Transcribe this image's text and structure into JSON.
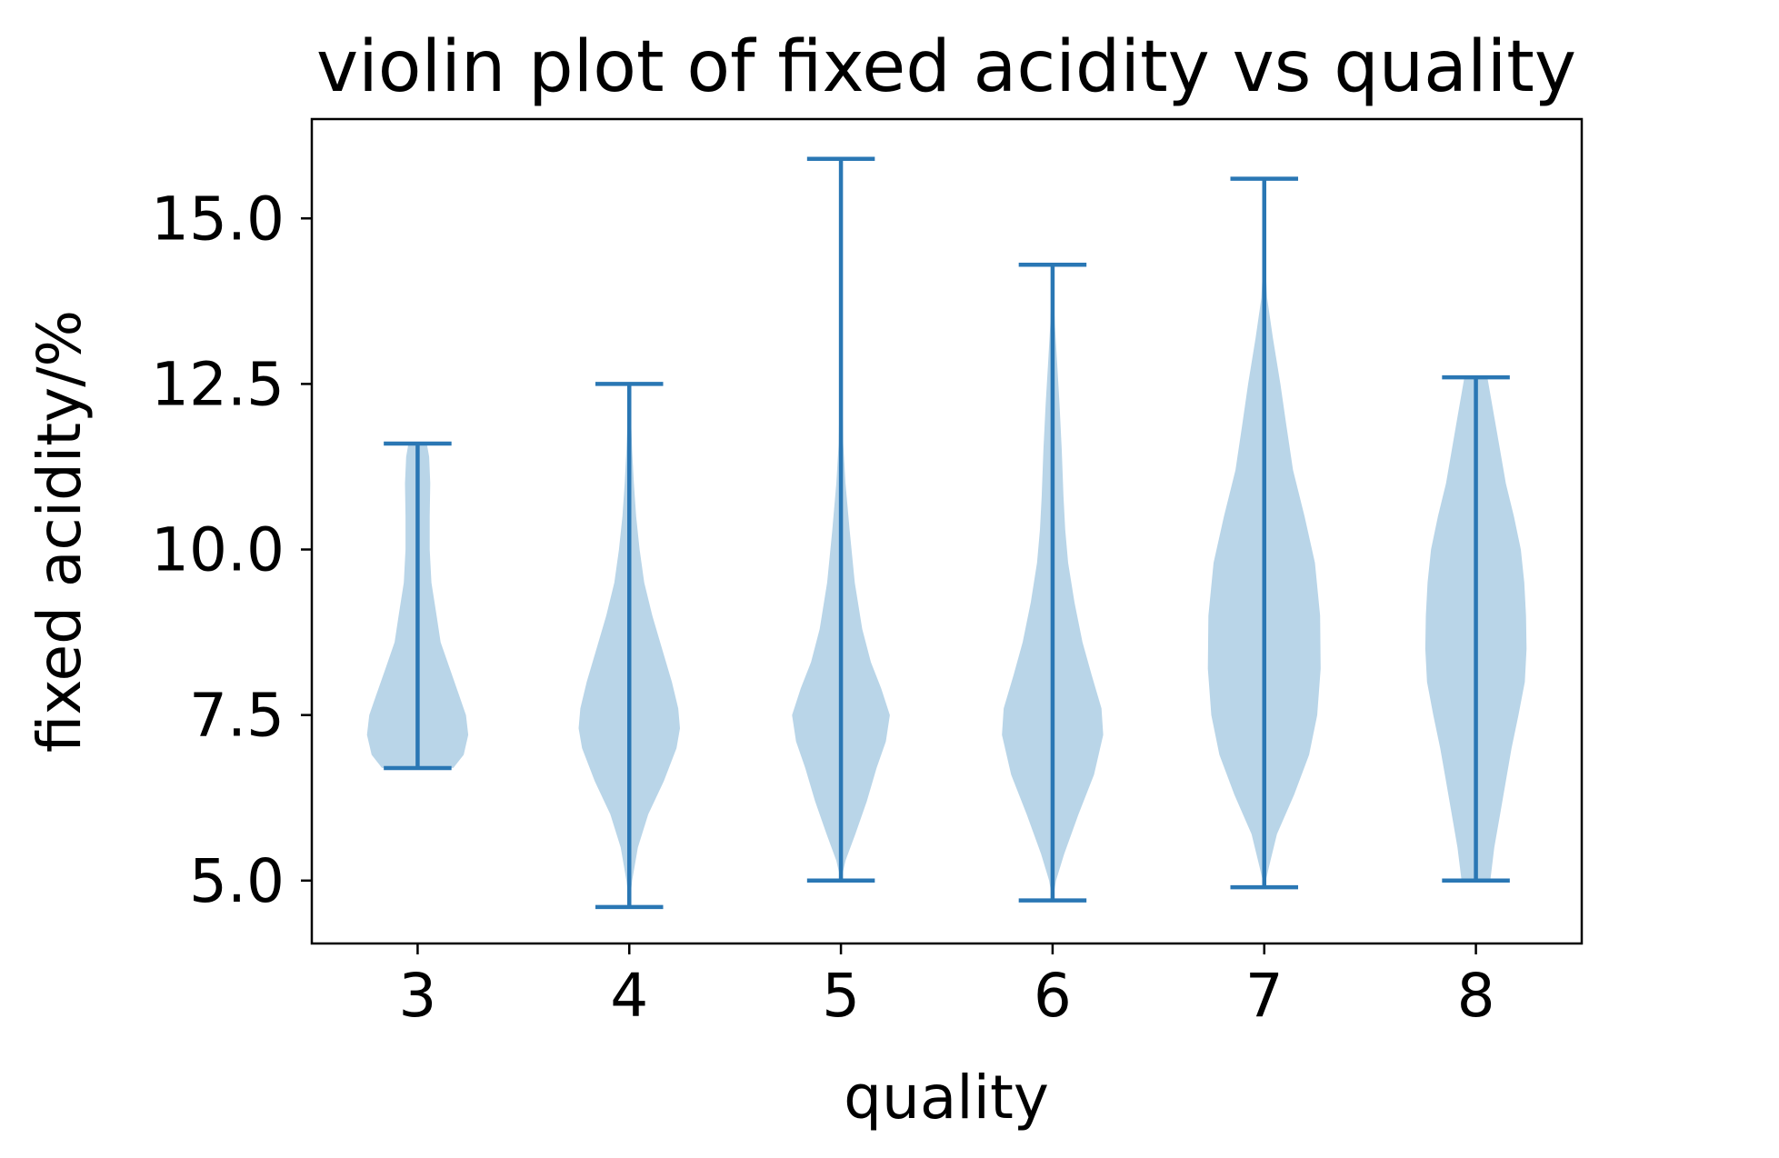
{
  "chart_data": {
    "type": "violin",
    "title": "violin plot of fixed acidity vs quality",
    "xlabel": "quality",
    "ylabel": "fixed acidity/%",
    "categories": [
      "3",
      "4",
      "5",
      "6",
      "7",
      "8"
    ],
    "x_tick_labels": [
      "3",
      "4",
      "5",
      "6",
      "7",
      "8"
    ],
    "y_ticks": [
      5.0,
      7.5,
      10.0,
      12.5,
      15.0
    ],
    "y_tick_labels": [
      "5.0",
      "7.5",
      "10.0",
      "12.5",
      "15.0"
    ],
    "ylim": [
      4.05,
      16.5
    ],
    "grid": false,
    "legend": "none",
    "colors": {
      "line": "#2a77b4",
      "body": "#b9d5e8"
    },
    "series": [
      {
        "category": "3",
        "min": 6.7,
        "max": 11.6,
        "density": [
          [
            6.7,
            0.62
          ],
          [
            6.9,
            0.8
          ],
          [
            7.2,
            0.88
          ],
          [
            7.5,
            0.84
          ],
          [
            7.8,
            0.72
          ],
          [
            8.2,
            0.56
          ],
          [
            8.6,
            0.4
          ],
          [
            9.0,
            0.33
          ],
          [
            9.5,
            0.24
          ],
          [
            10.0,
            0.21
          ],
          [
            10.5,
            0.21
          ],
          [
            11.0,
            0.22
          ],
          [
            11.4,
            0.2
          ],
          [
            11.6,
            0.16
          ]
        ]
      },
      {
        "category": "4",
        "min": 4.6,
        "max": 12.5,
        "density": [
          [
            4.6,
            0.0
          ],
          [
            5.0,
            0.05
          ],
          [
            5.5,
            0.15
          ],
          [
            6.0,
            0.33
          ],
          [
            6.5,
            0.6
          ],
          [
            7.0,
            0.82
          ],
          [
            7.3,
            0.88
          ],
          [
            7.6,
            0.85
          ],
          [
            8.0,
            0.74
          ],
          [
            8.5,
            0.57
          ],
          [
            9.0,
            0.4
          ],
          [
            9.5,
            0.26
          ],
          [
            10.0,
            0.18
          ],
          [
            10.5,
            0.12
          ],
          [
            11.0,
            0.08
          ],
          [
            11.5,
            0.05
          ],
          [
            12.0,
            0.03
          ],
          [
            12.5,
            0.0
          ]
        ]
      },
      {
        "category": "5",
        "min": 5.0,
        "max": 15.9,
        "density": [
          [
            5.0,
            0.0
          ],
          [
            5.3,
            0.08
          ],
          [
            5.7,
            0.25
          ],
          [
            6.2,
            0.45
          ],
          [
            6.7,
            0.62
          ],
          [
            7.1,
            0.78
          ],
          [
            7.5,
            0.85
          ],
          [
            7.9,
            0.7
          ],
          [
            8.3,
            0.52
          ],
          [
            8.8,
            0.37
          ],
          [
            9.5,
            0.24
          ],
          [
            10.3,
            0.15
          ],
          [
            11.0,
            0.08
          ],
          [
            11.6,
            0.04
          ],
          [
            12.5,
            0.02
          ],
          [
            13.5,
            0.01
          ],
          [
            14.5,
            0.005
          ],
          [
            15.9,
            0.0
          ]
        ]
      },
      {
        "category": "6",
        "min": 4.7,
        "max": 14.3,
        "density": [
          [
            4.7,
            0.0
          ],
          [
            5.0,
            0.06
          ],
          [
            5.4,
            0.2
          ],
          [
            6.0,
            0.45
          ],
          [
            6.6,
            0.72
          ],
          [
            7.2,
            0.88
          ],
          [
            7.6,
            0.85
          ],
          [
            8.1,
            0.68
          ],
          [
            8.6,
            0.52
          ],
          [
            9.2,
            0.38
          ],
          [
            9.8,
            0.27
          ],
          [
            10.3,
            0.22
          ],
          [
            10.8,
            0.19
          ],
          [
            11.5,
            0.16
          ],
          [
            12.2,
            0.12
          ],
          [
            12.8,
            0.08
          ],
          [
            13.4,
            0.04
          ],
          [
            14.3,
            0.0
          ]
        ]
      },
      {
        "category": "7",
        "min": 4.9,
        "max": 15.6,
        "density": [
          [
            4.9,
            0.0
          ],
          [
            5.2,
            0.08
          ],
          [
            5.7,
            0.22
          ],
          [
            6.3,
            0.52
          ],
          [
            6.9,
            0.78
          ],
          [
            7.5,
            0.92
          ],
          [
            8.2,
            0.98
          ],
          [
            9.0,
            0.97
          ],
          [
            9.8,
            0.88
          ],
          [
            10.5,
            0.7
          ],
          [
            11.2,
            0.5
          ],
          [
            11.9,
            0.38
          ],
          [
            12.5,
            0.28
          ],
          [
            13.2,
            0.15
          ],
          [
            13.8,
            0.05
          ],
          [
            14.5,
            0.01
          ],
          [
            15.6,
            0.0
          ]
        ]
      },
      {
        "category": "8",
        "min": 5.0,
        "max": 12.6,
        "density": [
          [
            5.0,
            0.25
          ],
          [
            5.5,
            0.32
          ],
          [
            6.0,
            0.42
          ],
          [
            6.5,
            0.52
          ],
          [
            7.0,
            0.62
          ],
          [
            7.5,
            0.74
          ],
          [
            8.0,
            0.85
          ],
          [
            8.5,
            0.88
          ],
          [
            9.0,
            0.87
          ],
          [
            9.5,
            0.84
          ],
          [
            10.0,
            0.78
          ],
          [
            10.5,
            0.66
          ],
          [
            11.0,
            0.52
          ],
          [
            11.5,
            0.42
          ],
          [
            12.0,
            0.32
          ],
          [
            12.6,
            0.2
          ]
        ]
      }
    ]
  }
}
